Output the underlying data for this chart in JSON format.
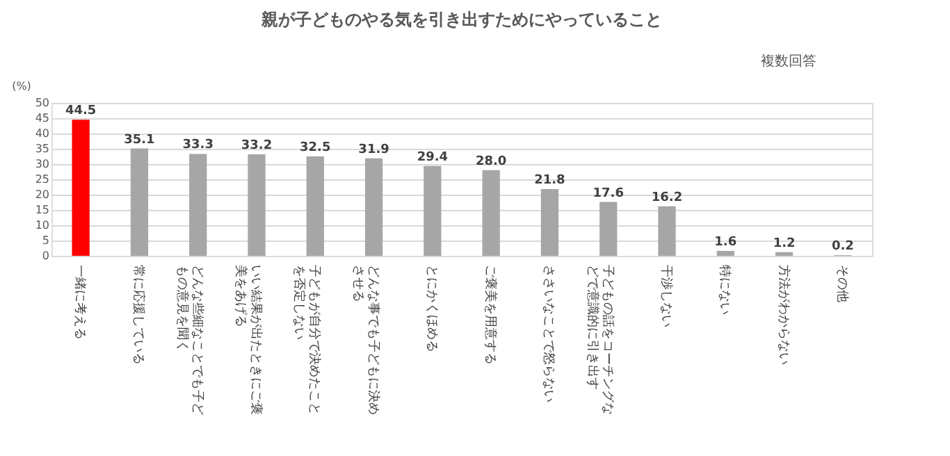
{
  "chart_data": {
    "type": "bar",
    "title": "親が子どものやる気を引き出すためにやっていること",
    "ylabel": "(%)",
    "annotations": [
      "複数回答"
    ],
    "categories": [
      "一緒に考える",
      "常に応援している",
      "どんな些細なことでも子どもの意見を聞く",
      "いい結果が出たときにご褒美をあげる",
      "子どもが自分で決めたことを否定しない",
      "どんな事でも子どもに決めさせる",
      "とにかくほめる",
      "ご褒美を用意する",
      "ささいなことで怒らない",
      "子どもの話をコーチングなどで意識的に引き出す",
      "干渉しない",
      "特にない",
      "方法がわからない",
      "その他"
    ],
    "values": [
      44.5,
      35.1,
      33.3,
      33.2,
      32.5,
      31.9,
      29.4,
      28.0,
      21.8,
      17.6,
      16.2,
      1.6,
      1.2,
      0.2
    ],
    "colors": [
      "#ff0000",
      "#a6a6a6",
      "#a6a6a6",
      "#a6a6a6",
      "#a6a6a6",
      "#a6a6a6",
      "#a6a6a6",
      "#a6a6a6",
      "#a6a6a6",
      "#a6a6a6",
      "#a6a6a6",
      "#a6a6a6",
      "#a6a6a6",
      "#a6a6a6"
    ],
    "ylim": [
      0,
      50
    ],
    "yticks": [
      0,
      5,
      10,
      15,
      20,
      25,
      30,
      35,
      40,
      45,
      50
    ],
    "grid": "y",
    "value_labels": [
      "44.5",
      "35.1",
      "33.3",
      "33.2",
      "32.5",
      "31.9",
      "29.4",
      "28.0",
      "21.8",
      "17.6",
      "16.2",
      "1.6",
      "1.2",
      "0.2"
    ]
  }
}
